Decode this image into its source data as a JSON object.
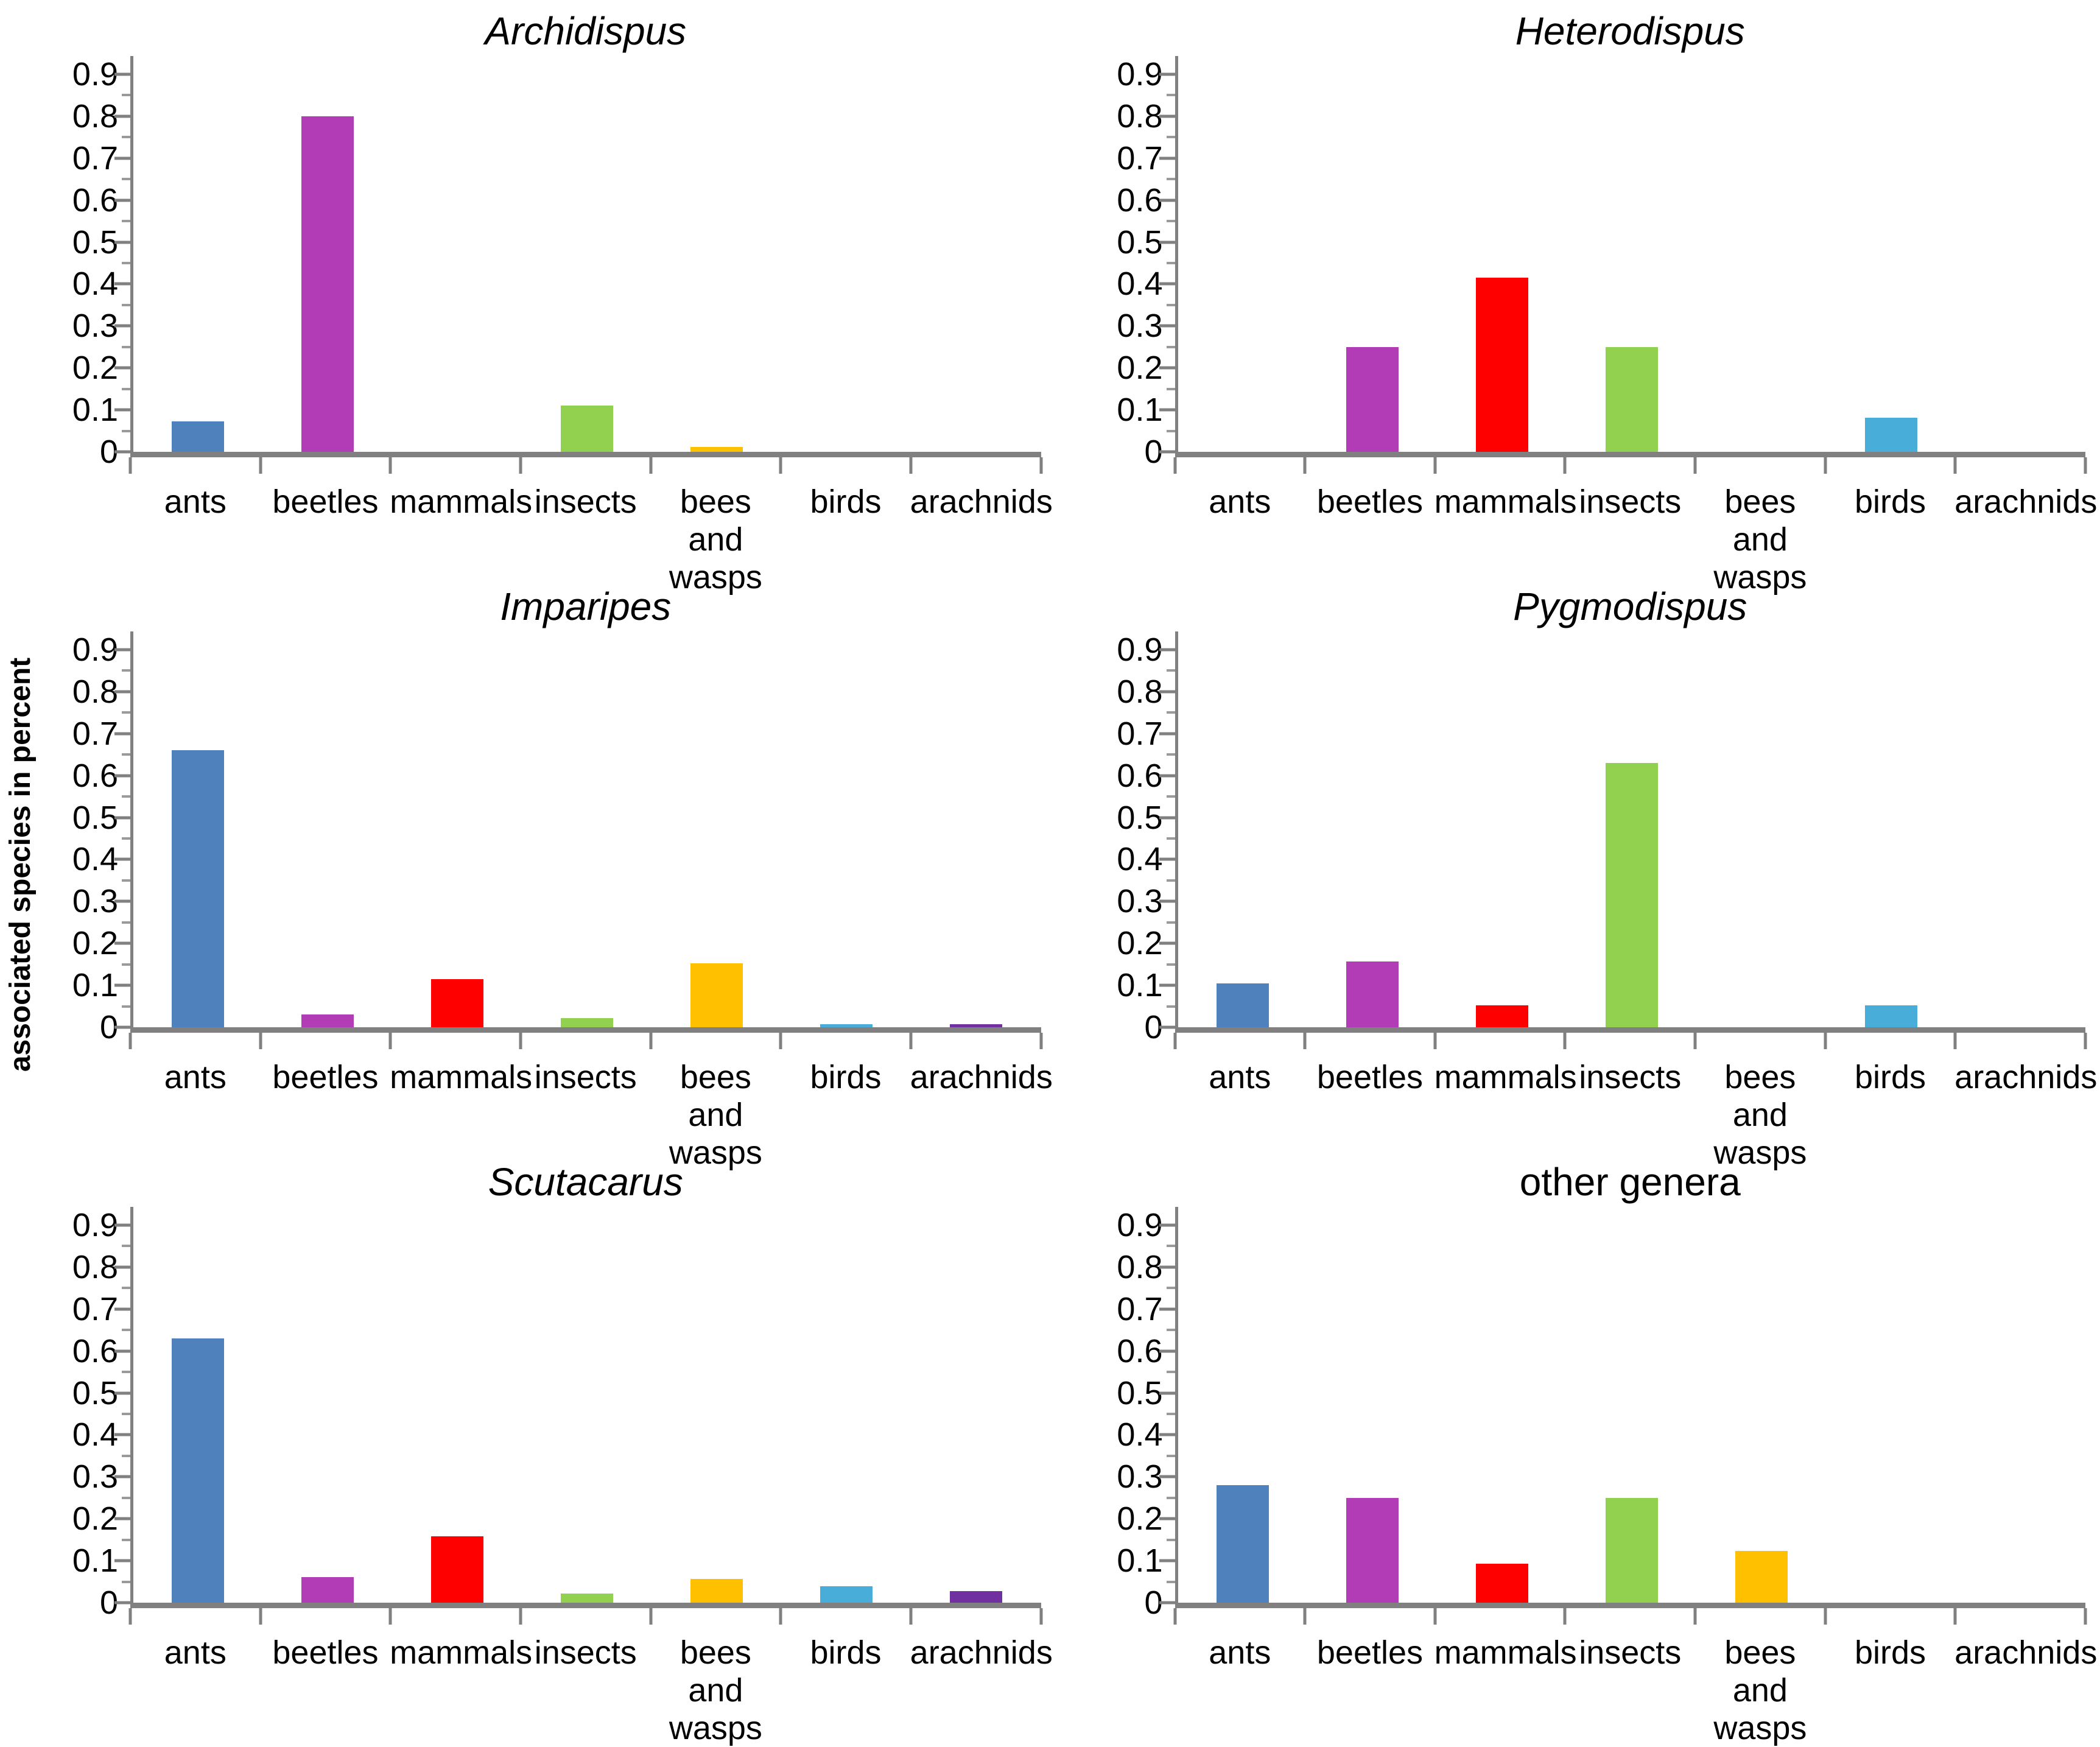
{
  "figure": {
    "ylabel": "associated species in percent",
    "background": "#FFFFFF",
    "axis_color": "#808080",
    "text_color": "#000000",
    "category_colors": {
      "ants": "#4F81BD",
      "beetles": "#B23CB5",
      "mammals": "#FF0000",
      "insects": "#92D050",
      "bees and wasps": "#FFC000",
      "birds": "#48ADD8",
      "arachnids": "#7030A0"
    }
  },
  "chart_data": [
    {
      "type": "bar",
      "title": "Archidispus",
      "title_italic": true,
      "categories": [
        "ants",
        "beetles",
        "mammals",
        "insects",
        "bees and wasps",
        "birds",
        "arachnids"
      ],
      "values": [
        0.072,
        0.8,
        0,
        0.11,
        0.012,
        0,
        0
      ],
      "xlabel": "",
      "ylabel": "",
      "ylim": [
        0,
        0.9
      ],
      "yticks": [
        0,
        0.1,
        0.2,
        0.3,
        0.4,
        0.5,
        0.6,
        0.7,
        0.8,
        0.9
      ],
      "grid": false,
      "legend": "none"
    },
    {
      "type": "bar",
      "title": "Heterodispus",
      "title_italic": true,
      "categories": [
        "ants",
        "beetles",
        "mammals",
        "insects",
        "bees and wasps",
        "birds",
        "arachnids"
      ],
      "values": [
        0,
        0.25,
        0.415,
        0.25,
        0,
        0.082,
        0
      ],
      "xlabel": "",
      "ylabel": "",
      "ylim": [
        0,
        0.9
      ],
      "yticks": [
        0,
        0.1,
        0.2,
        0.3,
        0.4,
        0.5,
        0.6,
        0.7,
        0.8,
        0.9
      ],
      "grid": false,
      "legend": "none"
    },
    {
      "type": "bar",
      "title": "Imparipes",
      "title_italic": true,
      "categories": [
        "ants",
        "beetles",
        "mammals",
        "insects",
        "bees and wasps",
        "birds",
        "arachnids"
      ],
      "values": [
        0.66,
        0.03,
        0.115,
        0.022,
        0.153,
        0.007,
        0.007
      ],
      "xlabel": "",
      "ylabel": "",
      "ylim": [
        0,
        0.9
      ],
      "yticks": [
        0,
        0.1,
        0.2,
        0.3,
        0.4,
        0.5,
        0.6,
        0.7,
        0.8,
        0.9
      ],
      "grid": false,
      "legend": "none"
    },
    {
      "type": "bar",
      "title": "Pygmodispus",
      "title_italic": true,
      "categories": [
        "ants",
        "beetles",
        "mammals",
        "insects",
        "bees and wasps",
        "birds",
        "arachnids"
      ],
      "values": [
        0.105,
        0.157,
        0.053,
        0.63,
        0,
        0.052,
        0
      ],
      "xlabel": "",
      "ylabel": "",
      "ylim": [
        0,
        0.9
      ],
      "yticks": [
        0,
        0.1,
        0.2,
        0.3,
        0.4,
        0.5,
        0.6,
        0.7,
        0.8,
        0.9
      ],
      "grid": false,
      "legend": "none"
    },
    {
      "type": "bar",
      "title": "Scutacarus",
      "title_italic": true,
      "categories": [
        "ants",
        "beetles",
        "mammals",
        "insects",
        "bees and wasps",
        "birds",
        "arachnids"
      ],
      "values": [
        0.63,
        0.061,
        0.158,
        0.022,
        0.056,
        0.039,
        0.028
      ],
      "xlabel": "",
      "ylabel": "",
      "ylim": [
        0,
        0.9
      ],
      "yticks": [
        0,
        0.1,
        0.2,
        0.3,
        0.4,
        0.5,
        0.6,
        0.7,
        0.8,
        0.9
      ],
      "grid": false,
      "legend": "none"
    },
    {
      "type": "bar",
      "title": "other genera",
      "title_italic": false,
      "categories": [
        "ants",
        "beetles",
        "mammals",
        "insects",
        "bees and wasps",
        "birds",
        "arachnids"
      ],
      "values": [
        0.28,
        0.25,
        0.093,
        0.25,
        0.124,
        0,
        0
      ],
      "xlabel": "",
      "ylabel": "",
      "ylim": [
        0,
        0.9
      ],
      "yticks": [
        0,
        0.1,
        0.2,
        0.3,
        0.4,
        0.5,
        0.6,
        0.7,
        0.8,
        0.9
      ],
      "grid": false,
      "legend": "none"
    }
  ]
}
